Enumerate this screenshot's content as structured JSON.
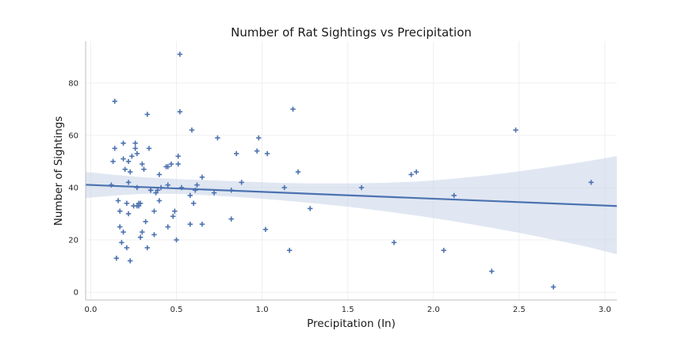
{
  "chart_data": {
    "type": "scatter",
    "title": "Number of Rat Sightings vs Precipitation",
    "xlabel": "Precipitation (In)",
    "ylabel": "Number of Sightings",
    "xlim": [
      -0.03,
      3.07
    ],
    "ylim": [
      -3,
      96
    ],
    "xticks": [
      0.0,
      0.5,
      1.0,
      1.5,
      2.0,
      2.5,
      3.0
    ],
    "xtick_labels": [
      "0.0",
      "0.5",
      "1.0",
      "1.5",
      "2.0",
      "2.5",
      "3.0"
    ],
    "yticks": [
      0,
      20,
      40,
      60,
      80
    ],
    "ytick_labels": [
      "0",
      "20",
      "40",
      "60",
      "80"
    ],
    "grid": true,
    "marker": "+",
    "marker_color": "#4c72b0",
    "regression_color": "#4c72b0",
    "confidence_band_color": "#c7d3e8",
    "x": [
      0.12,
      0.13,
      0.14,
      0.14,
      0.15,
      0.16,
      0.17,
      0.17,
      0.18,
      0.19,
      0.19,
      0.19,
      0.2,
      0.21,
      0.21,
      0.22,
      0.22,
      0.22,
      0.23,
      0.23,
      0.24,
      0.25,
      0.26,
      0.26,
      0.27,
      0.27,
      0.27,
      0.28,
      0.28,
      0.29,
      0.29,
      0.3,
      0.3,
      0.31,
      0.32,
      0.33,
      0.33,
      0.34,
      0.35,
      0.35,
      0.37,
      0.37,
      0.38,
      0.39,
      0.4,
      0.4,
      0.41,
      0.44,
      0.45,
      0.45,
      0.45,
      0.47,
      0.48,
      0.49,
      0.5,
      0.51,
      0.51,
      0.52,
      0.52,
      0.53,
      0.58,
      0.58,
      0.59,
      0.6,
      0.61,
      0.62,
      0.65,
      0.65,
      0.72,
      0.74,
      0.82,
      0.82,
      0.85,
      0.88,
      0.97,
      0.98,
      1.02,
      1.03,
      1.13,
      1.16,
      1.18,
      1.21,
      1.28,
      1.58,
      1.77,
      1.87,
      1.9,
      2.06,
      2.12,
      2.34,
      2.48,
      2.7,
      2.92
    ],
    "y": [
      41,
      50,
      73,
      55,
      13,
      35,
      31,
      25,
      19,
      51,
      57,
      23,
      47,
      34,
      17,
      42,
      50,
      30,
      46,
      12,
      52,
      33,
      55,
      57,
      53,
      33,
      40,
      34,
      33,
      34,
      21,
      49,
      23,
      47,
      27,
      68,
      17,
      55,
      39,
      39,
      22,
      31,
      38,
      39,
      35,
      45,
      40,
      48,
      48,
      41,
      25,
      49,
      29,
      31,
      20,
      52,
      49,
      69,
      91,
      40,
      37,
      26,
      62,
      34,
      39,
      41,
      44,
      26,
      38,
      59,
      28,
      39,
      53,
      42,
      54,
      59,
      24,
      53,
      40,
      16,
      70,
      46,
      32,
      40,
      19,
      45,
      46,
      16,
      37,
      8,
      62,
      2,
      42
    ],
    "regression": {
      "intercept": 41.0,
      "slope": -2.62
    },
    "confidence_band": {
      "x": [
        -0.03,
        0.0,
        0.15,
        0.3,
        0.5,
        0.7,
        0.9,
        1.1,
        1.3,
        1.5,
        1.7,
        1.9,
        2.1,
        2.3,
        2.5,
        2.7,
        2.9,
        3.07
      ],
      "lower": [
        36.0,
        36.2,
        37.0,
        37.6,
        37.6,
        37.0,
        36.2,
        35.2,
        34.0,
        32.7,
        31.1,
        29.3,
        27.3,
        25.1,
        22.7,
        20.1,
        17.3,
        14.5
      ],
      "upper": [
        46.0,
        45.8,
        44.8,
        44.0,
        43.3,
        42.8,
        42.3,
        41.8,
        41.6,
        41.6,
        41.8,
        42.3,
        43.3,
        44.6,
        46.2,
        48.1,
        50.1,
        52.0
      ]
    }
  }
}
